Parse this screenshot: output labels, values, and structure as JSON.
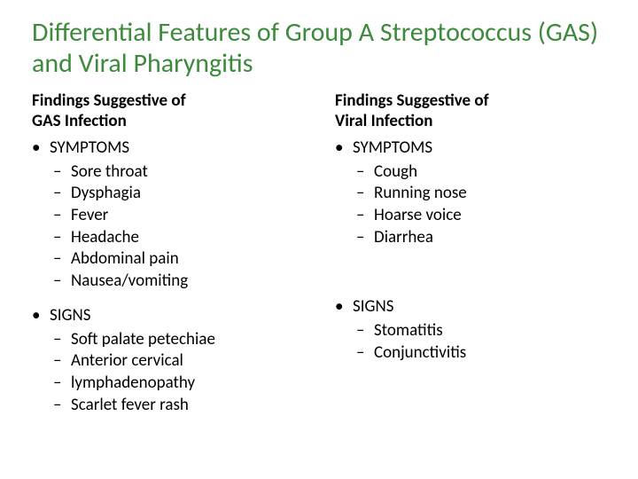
{
  "title": "Differential Features of Group A Streptococcus (GAS) and Viral Pharyngitis",
  "left": {
    "subheading_l1": "Findings Suggestive of",
    "subheading_l2": "GAS Infection",
    "symptoms_label": "SYMPTOMS",
    "symptoms": [
      "Sore throat",
      "Dysphagia",
      "Fever",
      "Headache",
      "Abdominal pain",
      "Nausea/vomiting"
    ],
    "signs_label": "SIGNS",
    "signs": [
      "Soft palate petechiae",
      "Anterior cervical",
      "lymphadenopathy",
      "Scarlet fever rash"
    ]
  },
  "right": {
    "subheading_l1": "Findings Suggestive of",
    "subheading_l2": "Viral Infection",
    "symptoms_label": "SYMPTOMS",
    "symptoms": [
      "Cough",
      "Running nose",
      "Hoarse voice",
      "Diarrhea"
    ],
    "signs_label": "SIGNS",
    "signs": [
      "Stomatitis",
      "Conjunctivitis"
    ]
  },
  "colors": {
    "title": "#3d8a3d",
    "text": "#000000",
    "background": "#ffffff"
  },
  "typography": {
    "title_fontsize_pt": 30,
    "body_fontsize_pt": 19,
    "font_family": "Calibri"
  }
}
